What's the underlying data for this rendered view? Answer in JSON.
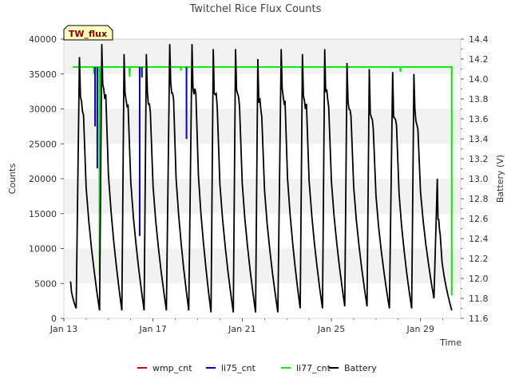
{
  "chart_data": {
    "type": "line",
    "title": "Twitchel Rice Flux Counts",
    "badge": "TW_flux",
    "xlabel": "Time",
    "ylabel": "Counts",
    "y2label": "Battery (V)",
    "x_ticks": [
      {
        "label": "Jan 13",
        "day": 13
      },
      {
        "label": "Jan 17",
        "day": 17
      },
      {
        "label": "Jan 21",
        "day": 21
      },
      {
        "label": "Jan 25",
        "day": 25
      },
      {
        "label": "Jan 29",
        "day": 29
      }
    ],
    "xlim_days": [
      13,
      30.8
    ],
    "ylim": [
      0,
      40000
    ],
    "y_ticks": [
      0,
      5000,
      10000,
      15000,
      20000,
      25000,
      30000,
      35000,
      40000
    ],
    "y2lim": [
      11.6,
      14.4
    ],
    "y2_ticks": [
      11.6,
      11.8,
      12.0,
      12.2,
      12.4,
      12.6,
      12.8,
      13.0,
      13.2,
      13.4,
      13.6,
      13.8,
      14.0,
      14.2,
      14.4
    ],
    "grid": "horizontal bands",
    "legend_position": "bottom",
    "legend": [
      {
        "name": "wmp_cnt",
        "color": "#dd0000"
      },
      {
        "name": "li75_cnt",
        "color": "#0000cc"
      },
      {
        "name": "li77_cnt",
        "color": "#00ee00"
      },
      {
        "name": "Battery",
        "color": "#000000"
      }
    ],
    "series": [
      {
        "name": "li77_cnt",
        "axis": "left",
        "color": "#00ee00",
        "baseline": 36000,
        "start_day": 13.4,
        "end_day": 30.4,
        "dips": [
          {
            "day": 14.35,
            "value": 35000
          },
          {
            "day": 14.6,
            "value": 6200
          },
          {
            "day": 15.95,
            "value": 34600
          },
          {
            "day": 18.25,
            "value": 35500
          },
          {
            "day": 23.7,
            "value": 34100
          },
          {
            "day": 28.1,
            "value": 35300
          }
        ],
        "final_drop": 3300
      },
      {
        "name": "li75_cnt",
        "axis": "left",
        "color": "#0000cc",
        "drops": [
          {
            "day": 14.4,
            "value": 27500
          },
          {
            "day": 14.5,
            "value": 21500
          },
          {
            "day": 16.4,
            "value": 11800
          },
          {
            "day": 16.5,
            "value": 34500
          },
          {
            "day": 18.5,
            "value": 25700
          }
        ]
      },
      {
        "name": "Battery",
        "axis": "right",
        "color": "#000000",
        "cycles": [
          {
            "min_day": 13.55,
            "min": 11.7,
            "peak_day": 13.7,
            "peak": 14.22
          },
          {
            "min_day": 14.6,
            "min": 11.68,
            "peak_day": 14.7,
            "peak": 14.35
          },
          {
            "min_day": 15.6,
            "min": 11.68,
            "peak_day": 15.7,
            "peak": 14.25
          },
          {
            "min_day": 16.6,
            "min": 11.68,
            "peak_day": 16.7,
            "peak": 14.25
          },
          {
            "min_day": 17.6,
            "min": 11.68,
            "peak_day": 17.75,
            "peak": 14.35
          },
          {
            "min_day": 18.6,
            "min": 11.68,
            "peak_day": 18.75,
            "peak": 14.35
          },
          {
            "min_day": 19.6,
            "min": 11.66,
            "peak_day": 19.7,
            "peak": 14.3
          },
          {
            "min_day": 20.6,
            "min": 11.66,
            "peak_day": 20.7,
            "peak": 14.3
          },
          {
            "min_day": 21.6,
            "min": 11.66,
            "peak_day": 21.7,
            "peak": 14.2
          },
          {
            "min_day": 22.6,
            "min": 11.66,
            "peak_day": 22.75,
            "peak": 14.3
          },
          {
            "min_day": 23.6,
            "min": 11.7,
            "peak_day": 23.7,
            "peak": 14.25
          },
          {
            "min_day": 24.6,
            "min": 11.7,
            "peak_day": 24.7,
            "peak": 14.3
          },
          {
            "min_day": 25.6,
            "min": 11.72,
            "peak_day": 25.7,
            "peak": 14.16
          },
          {
            "min_day": 26.6,
            "min": 11.72,
            "peak_day": 26.7,
            "peak": 14.1
          },
          {
            "min_day": 27.6,
            "min": 11.7,
            "peak_day": 27.75,
            "peak": 14.07
          },
          {
            "min_day": 28.6,
            "min": 11.7,
            "peak_day": 28.7,
            "peak": 14.05
          },
          {
            "min_day": 29.6,
            "min": 11.8,
            "peak_day": 29.75,
            "peak": 13.0
          }
        ],
        "start": {
          "day": 13.3,
          "value": 11.97
        },
        "end": {
          "day": 30.4,
          "value": 11.68
        }
      }
    ]
  }
}
